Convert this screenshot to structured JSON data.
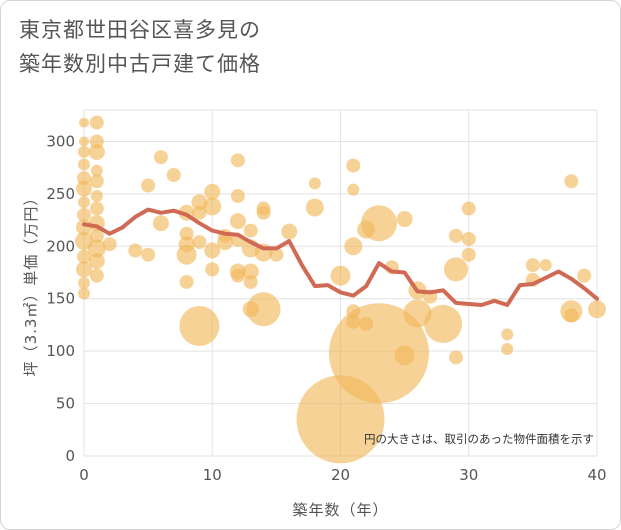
{
  "header": {
    "title_line1": "東京都世田谷区喜多見の",
    "title_line2": "築年数別中古戸建て価格"
  },
  "chart_data": {
    "type": "scatter",
    "xlabel": "築年数（年）",
    "ylabel": "坪（3.3㎡）単価（万円）",
    "xlim": [
      0,
      40
    ],
    "ylim": [
      0,
      330
    ],
    "xticks": [
      0,
      10,
      20,
      30,
      40
    ],
    "yticks": [
      0,
      50,
      100,
      150,
      200,
      250,
      300
    ],
    "grid": true,
    "annotation": "円の大きさは、取引のあった物件面積を示す",
    "colors": {
      "bubble": "#f0b757",
      "line": "#d06a55",
      "grid": "#e3e3e3"
    },
    "bubbles": [
      {
        "x": 0,
        "y": 318,
        "size": 5
      },
      {
        "x": 0,
        "y": 300,
        "size": 5
      },
      {
        "x": 0,
        "y": 290,
        "size": 6
      },
      {
        "x": 0,
        "y": 278,
        "size": 6
      },
      {
        "x": 0,
        "y": 265,
        "size": 7
      },
      {
        "x": 0,
        "y": 255,
        "size": 8
      },
      {
        "x": 0,
        "y": 242,
        "size": 6
      },
      {
        "x": 0,
        "y": 230,
        "size": 7
      },
      {
        "x": 0,
        "y": 218,
        "size": 8
      },
      {
        "x": 0,
        "y": 205,
        "size": 9
      },
      {
        "x": 0,
        "y": 190,
        "size": 7
      },
      {
        "x": 0,
        "y": 178,
        "size": 8
      },
      {
        "x": 0,
        "y": 165,
        "size": 6
      },
      {
        "x": 0,
        "y": 155,
        "size": 6
      },
      {
        "x": 1,
        "y": 318,
        "size": 7
      },
      {
        "x": 1,
        "y": 300,
        "size": 7
      },
      {
        "x": 1,
        "y": 290,
        "size": 8
      },
      {
        "x": 1,
        "y": 272,
        "size": 6
      },
      {
        "x": 1,
        "y": 262,
        "size": 7
      },
      {
        "x": 1,
        "y": 248,
        "size": 6
      },
      {
        "x": 1,
        "y": 236,
        "size": 7
      },
      {
        "x": 1,
        "y": 222,
        "size": 8
      },
      {
        "x": 1,
        "y": 210,
        "size": 7
      },
      {
        "x": 1,
        "y": 198,
        "size": 9
      },
      {
        "x": 1,
        "y": 186,
        "size": 8
      },
      {
        "x": 1,
        "y": 172,
        "size": 7
      },
      {
        "x": 2,
        "y": 202,
        "size": 7
      },
      {
        "x": 4,
        "y": 196,
        "size": 7
      },
      {
        "x": 5,
        "y": 258,
        "size": 7
      },
      {
        "x": 5,
        "y": 192,
        "size": 7
      },
      {
        "x": 6,
        "y": 285,
        "size": 7
      },
      {
        "x": 6,
        "y": 222,
        "size": 8
      },
      {
        "x": 7,
        "y": 268,
        "size": 7
      },
      {
        "x": 8,
        "y": 232,
        "size": 8
      },
      {
        "x": 8,
        "y": 212,
        "size": 7
      },
      {
        "x": 8,
        "y": 202,
        "size": 8
      },
      {
        "x": 8,
        "y": 192,
        "size": 10
      },
      {
        "x": 8,
        "y": 166,
        "size": 7
      },
      {
        "x": 9,
        "y": 242,
        "size": 8
      },
      {
        "x": 9,
        "y": 232,
        "size": 7
      },
      {
        "x": 9,
        "y": 204,
        "size": 7
      },
      {
        "x": 9,
        "y": 124,
        "size": 20
      },
      {
        "x": 10,
        "y": 252,
        "size": 8
      },
      {
        "x": 10,
        "y": 238,
        "size": 9
      },
      {
        "x": 10,
        "y": 196,
        "size": 8
      },
      {
        "x": 10,
        "y": 178,
        "size": 7
      },
      {
        "x": 11,
        "y": 210,
        "size": 7
      },
      {
        "x": 11,
        "y": 204,
        "size": 8
      },
      {
        "x": 12,
        "y": 282,
        "size": 7
      },
      {
        "x": 12,
        "y": 248,
        "size": 7
      },
      {
        "x": 12,
        "y": 224,
        "size": 8
      },
      {
        "x": 12,
        "y": 206,
        "size": 7
      },
      {
        "x": 12,
        "y": 176,
        "size": 8
      },
      {
        "x": 12,
        "y": 172,
        "size": 7
      },
      {
        "x": 13,
        "y": 215,
        "size": 7
      },
      {
        "x": 13,
        "y": 198,
        "size": 9
      },
      {
        "x": 13,
        "y": 176,
        "size": 8
      },
      {
        "x": 13,
        "y": 166,
        "size": 7
      },
      {
        "x": 13,
        "y": 140,
        "size": 8
      },
      {
        "x": 14,
        "y": 236,
        "size": 7
      },
      {
        "x": 14,
        "y": 232,
        "size": 7
      },
      {
        "x": 14,
        "y": 194,
        "size": 9
      },
      {
        "x": 14,
        "y": 140,
        "size": 17
      },
      {
        "x": 15,
        "y": 192,
        "size": 7
      },
      {
        "x": 16,
        "y": 214,
        "size": 8
      },
      {
        "x": 18,
        "y": 260,
        "size": 6
      },
      {
        "x": 18,
        "y": 237,
        "size": 9
      },
      {
        "x": 20,
        "y": 172,
        "size": 10
      },
      {
        "x": 20,
        "y": 35,
        "size": 44
      },
      {
        "x": 21,
        "y": 277,
        "size": 7
      },
      {
        "x": 21,
        "y": 254,
        "size": 6
      },
      {
        "x": 21,
        "y": 200,
        "size": 9
      },
      {
        "x": 21,
        "y": 138,
        "size": 7
      },
      {
        "x": 21,
        "y": 128,
        "size": 7
      },
      {
        "x": 22,
        "y": 216,
        "size": 9
      },
      {
        "x": 22,
        "y": 126,
        "size": 7
      },
      {
        "x": 23,
        "y": 222,
        "size": 18
      },
      {
        "x": 23,
        "y": 98,
        "size": 50
      },
      {
        "x": 24,
        "y": 180,
        "size": 7
      },
      {
        "x": 25,
        "y": 226,
        "size": 8
      },
      {
        "x": 25,
        "y": 96,
        "size": 10
      },
      {
        "x": 26,
        "y": 158,
        "size": 9
      },
      {
        "x": 26,
        "y": 136,
        "size": 14
      },
      {
        "x": 27,
        "y": 152,
        "size": 7
      },
      {
        "x": 28,
        "y": 126,
        "size": 19
      },
      {
        "x": 29,
        "y": 210,
        "size": 7
      },
      {
        "x": 29,
        "y": 178,
        "size": 12
      },
      {
        "x": 29,
        "y": 94,
        "size": 7
      },
      {
        "x": 30,
        "y": 236,
        "size": 7
      },
      {
        "x": 30,
        "y": 207,
        "size": 7
      },
      {
        "x": 30,
        "y": 192,
        "size": 7
      },
      {
        "x": 33,
        "y": 116,
        "size": 6
      },
      {
        "x": 33,
        "y": 102,
        "size": 6
      },
      {
        "x": 35,
        "y": 182,
        "size": 7
      },
      {
        "x": 35,
        "y": 168,
        "size": 7
      },
      {
        "x": 36,
        "y": 182,
        "size": 6
      },
      {
        "x": 38,
        "y": 262,
        "size": 7
      },
      {
        "x": 38,
        "y": 138,
        "size": 11
      },
      {
        "x": 38,
        "y": 134,
        "size": 7
      },
      {
        "x": 39,
        "y": 172,
        "size": 7
      },
      {
        "x": 40,
        "y": 140,
        "size": 9
      }
    ],
    "series": [
      {
        "type": "line",
        "x": [
          0,
          1,
          2,
          3,
          4,
          5,
          6,
          7,
          8,
          9,
          10,
          11,
          12,
          13,
          14,
          15,
          16,
          17,
          18,
          19,
          20,
          21,
          22,
          23,
          24,
          25,
          26,
          27,
          28,
          29,
          30,
          31,
          32,
          33,
          34,
          35,
          36,
          37,
          38,
          39,
          40
        ],
        "values": [
          221,
          219,
          212,
          218,
          228,
          235,
          232,
          234,
          230,
          222,
          215,
          212,
          211,
          204,
          198,
          198,
          205,
          182,
          162,
          163,
          156,
          153,
          162,
          184,
          176,
          175,
          157,
          156,
          158,
          146,
          145,
          144,
          148,
          144,
          163,
          164,
          170,
          176,
          169,
          160,
          150
        ]
      }
    ]
  }
}
